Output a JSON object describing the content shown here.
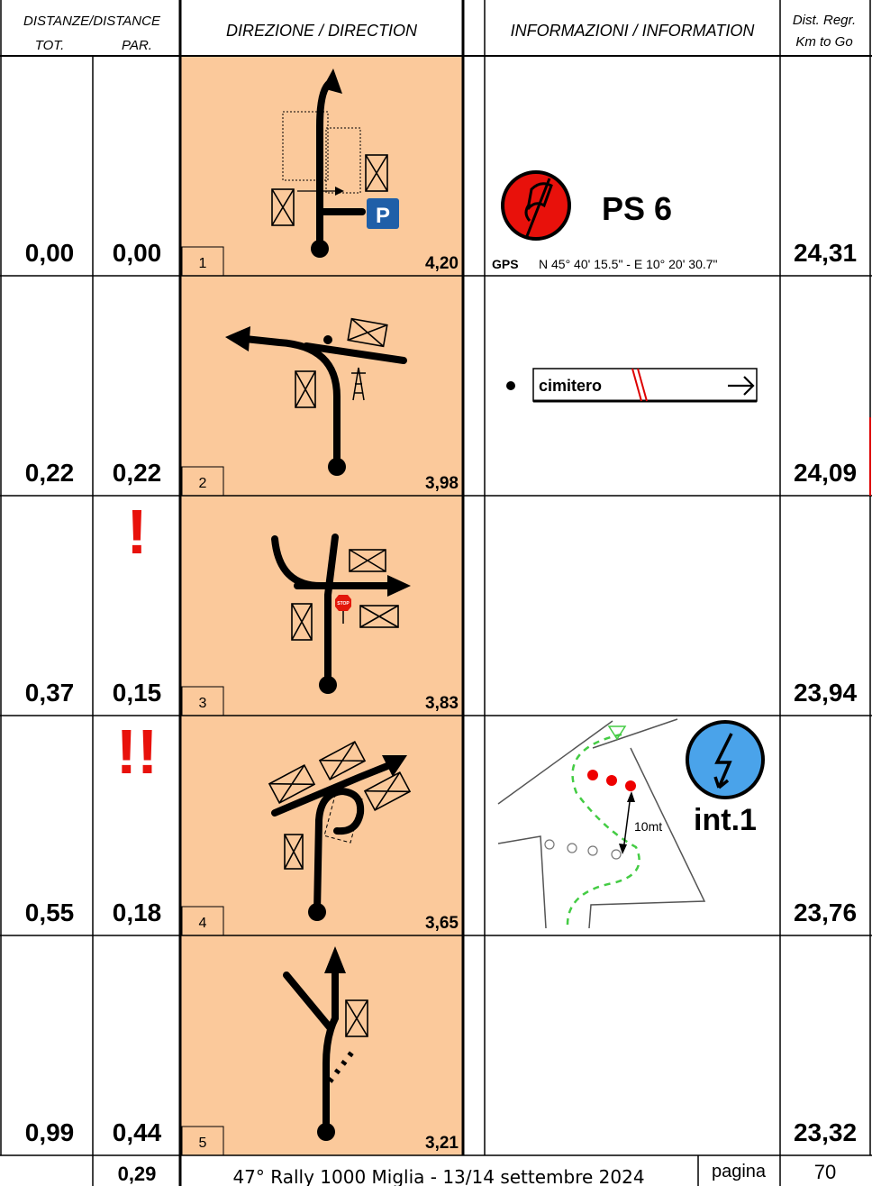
{
  "header": {
    "distances": "DISTANZE/DISTANCE",
    "tot": "TOT.",
    "par": "PAR.",
    "direction": "DIREZIONE / DIRECTION",
    "information": "INFORMAZIONI / INFORMATION",
    "dist_regr": "Dist. Regr.",
    "km_to_go": "Km to Go"
  },
  "rows": [
    {
      "tot": "0,00",
      "par": "0,00",
      "number": "1",
      "partial": "4,20",
      "to_go": "24,31",
      "parking": "P",
      "info_title": "PS 6",
      "gps_label": "GPS",
      "gps": "N 45° 40' 15.5\" - E 10° 20' 30.7\""
    },
    {
      "tot": "0,22",
      "par": "0,22",
      "number": "2",
      "partial": "3,98",
      "to_go": "24,09",
      "sign": "cimitero"
    },
    {
      "tot": "0,37",
      "par": "0,15",
      "number": "3",
      "partial": "3,83",
      "to_go": "23,94",
      "warning": "!",
      "stop": "STOP"
    },
    {
      "tot": "0,55",
      "par": "0,18",
      "number": "4",
      "partial": "3,65",
      "to_go": "23,76",
      "warning": "!!",
      "distance_note": "10mt",
      "info_title": "int.1"
    },
    {
      "tot": "0,99",
      "par": "0,44",
      "number": "5",
      "partial": "3,21",
      "to_go": "23,32"
    }
  ],
  "footer": {
    "total_par": "0,29",
    "title": "47° Rally 1000 Miglia - 13/14 settembre 2024",
    "page_label": "pagina",
    "page": "70"
  }
}
